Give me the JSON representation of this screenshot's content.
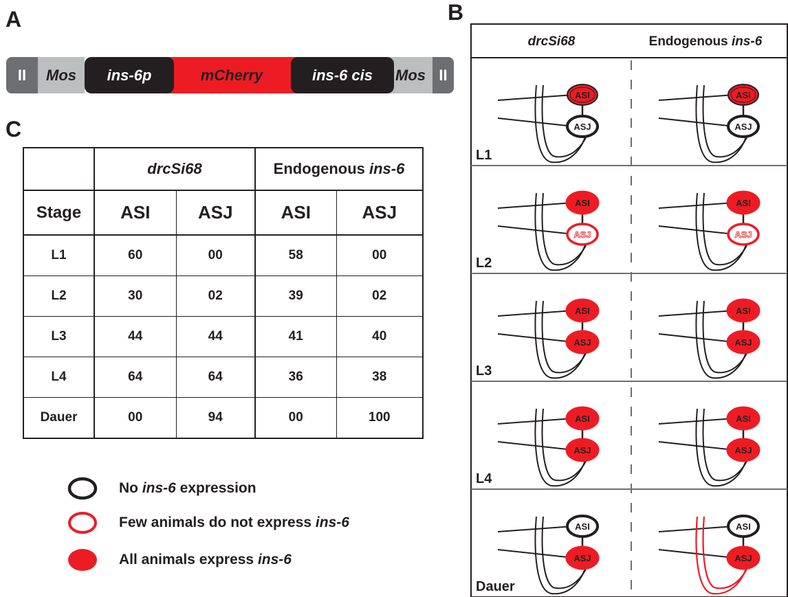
{
  "panel_labels": {
    "a": "A",
    "b": "B",
    "c": "C"
  },
  "construct": {
    "segments": [
      {
        "label": "II",
        "kind": "chrom"
      },
      {
        "label": "Mos",
        "kind": "mos"
      },
      {
        "label": "ins-6p",
        "kind": "black"
      },
      {
        "label": "mCherry",
        "kind": "red"
      },
      {
        "label": "ins-6 cis",
        "kind": "black"
      },
      {
        "label": "Mos",
        "kind": "mos"
      },
      {
        "label": "II",
        "kind": "chrom"
      }
    ]
  },
  "table": {
    "group_headers": {
      "transgene": "drcSi68",
      "endogenous_prefix": "Endogenous ",
      "endogenous_gene": "ins-6"
    },
    "column_headers": [
      "Stage",
      "ASI",
      "ASJ",
      "ASI",
      "ASJ"
    ],
    "rows": [
      {
        "stage": "L1",
        "values": [
          "60",
          "00",
          "58",
          "00"
        ]
      },
      {
        "stage": "L2",
        "values": [
          "30",
          "02",
          "39",
          "02"
        ]
      },
      {
        "stage": "L3",
        "values": [
          "44",
          "44",
          "41",
          "40"
        ]
      },
      {
        "stage": "L4",
        "values": [
          "64",
          "64",
          "36",
          "38"
        ]
      },
      {
        "stage": "Dauer",
        "values": [
          "00",
          "94",
          "00",
          "100"
        ]
      }
    ]
  },
  "legend": {
    "none": {
      "pre": "No ",
      "gene": "ins-6",
      "post": " expression"
    },
    "few": {
      "pre": "Few animals do not express ",
      "gene": "ins-6",
      "post": ""
    },
    "all": {
      "pre": "All animals express ",
      "gene": "ins-6",
      "post": ""
    }
  },
  "panel_b": {
    "header_left": "drcSi68",
    "header_right_prefix": "Endogenous ",
    "header_right_gene": "ins-6",
    "neuron_labels": {
      "asi": "ASI",
      "asj": "ASJ"
    },
    "rows": [
      {
        "stage": "L1",
        "left": {
          "asi": "outlined-red",
          "asj": "none"
        },
        "right": {
          "asi": "outlined-red",
          "asj": "none"
        },
        "red_neurite": false
      },
      {
        "stage": "L2",
        "left": {
          "asi": "all",
          "asj": "few"
        },
        "right": {
          "asi": "all",
          "asj": "few"
        },
        "red_neurite": false
      },
      {
        "stage": "L3",
        "left": {
          "asi": "all",
          "asj": "all"
        },
        "right": {
          "asi": "all",
          "asj": "all"
        },
        "red_neurite": false
      },
      {
        "stage": "L4",
        "left": {
          "asi": "all",
          "asj": "all"
        },
        "right": {
          "asi": "all",
          "asj": "all"
        },
        "red_neurite": false
      },
      {
        "stage": "Dauer",
        "left": {
          "asi": "none",
          "asj": "all"
        },
        "right": {
          "asi": "none",
          "asj": "all"
        },
        "red_neurite": true
      }
    ]
  },
  "colors": {
    "red": "#ed1c24",
    "black": "#231f20",
    "dark_grey": "#6d6e71",
    "light_grey": "#bcbec0"
  }
}
